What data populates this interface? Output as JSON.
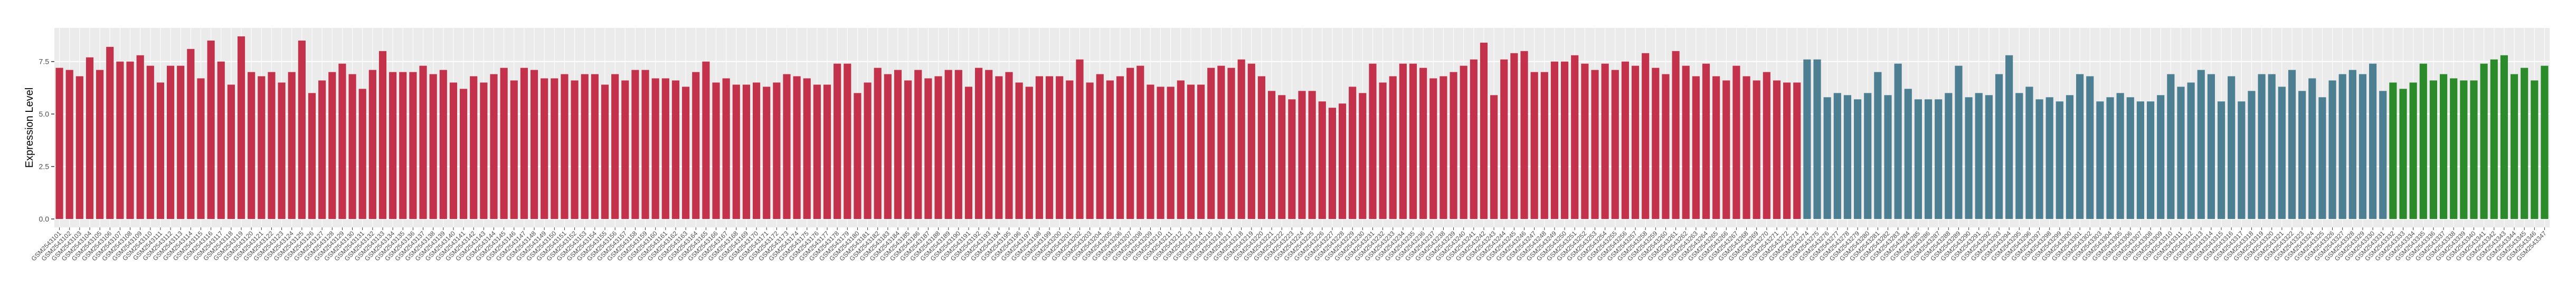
{
  "chart_data": {
    "type": "bar",
    "y_label": "Expression Level",
    "ylim": [
      -0.4,
      9.1
    ],
    "yticks": [
      {
        "value": 0,
        "label": "0.0"
      },
      {
        "value": 2.5,
        "label": "2.5"
      },
      {
        "value": 5,
        "label": "5.0"
      },
      {
        "value": 7.5,
        "label": "7.5"
      }
    ],
    "grid": true,
    "color_runs": [
      [
        "#c3324a",
        173
      ],
      [
        "#4b7f91",
        58
      ],
      [
        "#2b8b2b",
        16
      ]
    ],
    "categories": [
      "GSM2543101",
      "GSM2543102",
      "GSM2543103",
      "GSM2543104",
      "GSM2543105",
      "GSM2543106",
      "GSM2543107",
      "GSM2543108",
      "GSM2543109",
      "GSM2543110",
      "GSM2543111",
      "GSM2543112",
      "GSM2543113",
      "GSM2543114",
      "GSM2543115",
      "GSM2543116",
      "GSM2543117",
      "GSM2543118",
      "GSM2543119",
      "GSM2543120",
      "GSM2543121",
      "GSM2543122",
      "GSM2543123",
      "GSM2543124",
      "GSM2543125",
      "GSM2543126",
      "GSM2543127",
      "GSM2543128",
      "GSM2543129",
      "GSM2543130",
      "GSM2543131",
      "GSM2543132",
      "GSM2543133",
      "GSM2543134",
      "GSM2543135",
      "GSM2543136",
      "GSM2543137",
      "GSM2543138",
      "GSM2543139",
      "GSM2543140",
      "GSM2543141",
      "GSM2543142",
      "GSM2543143",
      "GSM2543144",
      "GSM2543145",
      "GSM2543146",
      "GSM2543147",
      "GSM2543148",
      "GSM2543149",
      "GSM2543150",
      "GSM2543151",
      "GSM2543152",
      "GSM2543153",
      "GSM2543154",
      "GSM2543155",
      "GSM2543156",
      "GSM2543157",
      "GSM2543158",
      "GSM2543159",
      "GSM2543160",
      "GSM2543161",
      "GSM2543162",
      "GSM2543163",
      "GSM2543164",
      "GSM2543165",
      "GSM2543166",
      "GSM2543167",
      "GSM2543168",
      "GSM2543169",
      "GSM2543170",
      "GSM2543171",
      "GSM2543172",
      "GSM2543173",
      "GSM2543174",
      "GSM2543175",
      "GSM2543176",
      "GSM2543177",
      "GSM2543178",
      "GSM2543179",
      "GSM2543180",
      "GSM2543181",
      "GSM2543182",
      "GSM2543183",
      "GSM2543184",
      "GSM2543185",
      "GSM2543186",
      "GSM2543187",
      "GSM2543188",
      "GSM2543189",
      "GSM2543190",
      "GSM2543191",
      "GSM2543192",
      "GSM2543193",
      "GSM2543194",
      "GSM2543195",
      "GSM2543196",
      "GSM2543197",
      "GSM2543198",
      "GSM2543199",
      "GSM2543200",
      "GSM2543201",
      "GSM2543202",
      "GSM2543203",
      "GSM2543204",
      "GSM2543205",
      "GSM2543206",
      "GSM2543207",
      "GSM2543208",
      "GSM2543209",
      "GSM2543210",
      "GSM2543211",
      "GSM2543212",
      "GSM2543213",
      "GSM2543214",
      "GSM2543215",
      "GSM2543216",
      "GSM2543217",
      "GSM2543218",
      "GSM2543219",
      "GSM2543220",
      "GSM2543221",
      "GSM2543222",
      "GSM2543223",
      "GSM2543224",
      "GSM2543225",
      "GSM2543226",
      "GSM2543227",
      "GSM2543228",
      "GSM2543229",
      "GSM2543230",
      "GSM2543231",
      "GSM2543232",
      "GSM2543233",
      "GSM2543234",
      "GSM2543235",
      "GSM2543236",
      "GSM2543237",
      "GSM2543238",
      "GSM2543239",
      "GSM2543240",
      "GSM2543241",
      "GSM2543242",
      "GSM2543243",
      "GSM2543244",
      "GSM2543245",
      "GSM2543246",
      "GSM2543247",
      "GSM2543248",
      "GSM2543249",
      "GSM2543250",
      "GSM2543251",
      "GSM2543252",
      "GSM2543253",
      "GSM2543254",
      "GSM2543255",
      "GSM2543256",
      "GSM2543257",
      "GSM2543258",
      "GSM2543259",
      "GSM2543260",
      "GSM2543261",
      "GSM2543262",
      "GSM2543263",
      "GSM2543264",
      "GSM2543265",
      "GSM2543266",
      "GSM2543267",
      "GSM2543268",
      "GSM2543269",
      "GSM2543270",
      "GSM2543271",
      "GSM2543272",
      "GSM2543273",
      "GSM2543274",
      "GSM2543275",
      "GSM2543276",
      "GSM2543277",
      "GSM2543278",
      "GSM2543279",
      "GSM2543280",
      "GSM2543281",
      "GSM2543282",
      "GSM2543283",
      "GSM2543284",
      "GSM2543285",
      "GSM2543286",
      "GSM2543287",
      "GSM2543288",
      "GSM2543289",
      "GSM2543290",
      "GSM2543291",
      "GSM2543292",
      "GSM2543293",
      "GSM2543294",
      "GSM2543295",
      "GSM2543296",
      "GSM2543297",
      "GSM2543298",
      "GSM2543299",
      "GSM2543300",
      "GSM2543301",
      "GSM2543302",
      "GSM2543303",
      "GSM2543304",
      "GSM2543305",
      "GSM2543306",
      "GSM2543307",
      "GSM2543308",
      "GSM2543309",
      "GSM2543310",
      "GSM2543311",
      "GSM2543312",
      "GSM2543313",
      "GSM2543314",
      "GSM2543315",
      "GSM2543316",
      "GSM2543317",
      "GSM2543318",
      "GSM2543319",
      "GSM2543320",
      "GSM2543321",
      "GSM2543322",
      "GSM2543323",
      "GSM2543324",
      "GSM2543325",
      "GSM2543326",
      "GSM2543327",
      "GSM2543328",
      "GSM2543329",
      "GSM2543330",
      "GSM2543331",
      "GSM2543332",
      "GSM2543333",
      "GSM2543334",
      "GSM2543335",
      "GSM2543336",
      "GSM2543337",
      "GSM2543338",
      "GSM2543339",
      "GSM2543340",
      "GSM2543341",
      "GSM2543342",
      "GSM2543343",
      "GSM2543344",
      "GSM2543345",
      "GSM2543346",
      "GSM2543347"
    ],
    "values": [
      7.2,
      7.1,
      6.8,
      7.7,
      7.1,
      8.2,
      7.5,
      7.5,
      7.8,
      7.3,
      6.5,
      7.3,
      7.3,
      8.1,
      6.7,
      8.5,
      7.5,
      6.4,
      8.7,
      7.0,
      6.8,
      7.0,
      6.5,
      7.0,
      8.5,
      6.0,
      6.6,
      7.0,
      7.4,
      6.9,
      6.2,
      7.1,
      8.0,
      7.0,
      7.0,
      7.0,
      7.3,
      6.9,
      7.1,
      6.5,
      6.2,
      6.8,
      6.5,
      6.9,
      7.2,
      6.6,
      7.2,
      7.1,
      6.7,
      6.7,
      6.9,
      6.6,
      6.9,
      6.9,
      6.4,
      6.9,
      6.6,
      7.1,
      7.1,
      6.7,
      6.7,
      6.6,
      6.3,
      7.0,
      7.5,
      6.5,
      6.7,
      6.4,
      6.4,
      6.5,
      6.3,
      6.5,
      6.9,
      6.8,
      6.7,
      6.4,
      6.4,
      7.4,
      7.4,
      6.0,
      6.5,
      7.2,
      6.9,
      7.1,
      6.6,
      7.1,
      6.7,
      6.8,
      7.1,
      7.1,
      6.3,
      7.2,
      7.1,
      6.8,
      7.0,
      6.5,
      6.3,
      6.8,
      6.8,
      6.8,
      6.6,
      7.6,
      6.5,
      6.9,
      6.6,
      6.8,
      7.2,
      7.3,
      6.4,
      6.3,
      6.3,
      6.6,
      6.4,
      6.4,
      7.2,
      7.3,
      7.2,
      7.6,
      7.4,
      6.8,
      6.1,
      5.9,
      5.7,
      6.1,
      6.1,
      5.6,
      5.3,
      5.5,
      6.3,
      6.0,
      7.4,
      6.5,
      6.8,
      7.4,
      7.4,
      7.2,
      6.7,
      6.8,
      7.0,
      7.3,
      7.6,
      8.4,
      5.9,
      7.6,
      7.9,
      8.0,
      7.0,
      7.0,
      7.5,
      7.5,
      7.8,
      7.4,
      7.1,
      7.4,
      7.1,
      7.5,
      7.3,
      7.9,
      7.2,
      6.9,
      8.0,
      7.3,
      6.8,
      7.4,
      6.8,
      6.6,
      7.3,
      6.8,
      6.6,
      7.0,
      6.6,
      6.5,
      6.5,
      7.6,
      7.6,
      5.8,
      6.0,
      5.9,
      5.7,
      6.0,
      7.0,
      5.9,
      7.4,
      6.2,
      5.7,
      5.7,
      5.7,
      6.0,
      7.3,
      5.8,
      6.0,
      5.9,
      6.9,
      7.8,
      6.0,
      6.3,
      5.7,
      5.8,
      5.6,
      5.9,
      6.9,
      6.8,
      5.6,
      5.8,
      6.0,
      5.8,
      5.6,
      5.6,
      5.9,
      6.9,
      6.3,
      6.5,
      7.1,
      6.9,
      5.6,
      6.8,
      5.6,
      6.1,
      6.9,
      6.9,
      6.3,
      7.1,
      6.1,
      6.7,
      5.8,
      6.6,
      6.9,
      7.1,
      6.9,
      7.4,
      6.1,
      6.5,
      6.2,
      6.5,
      7.4,
      6.6,
      6.9,
      6.7,
      6.6,
      6.6,
      7.4,
      7.6,
      7.8,
      6.9,
      7.2,
      6.6,
      7.3
    ]
  }
}
